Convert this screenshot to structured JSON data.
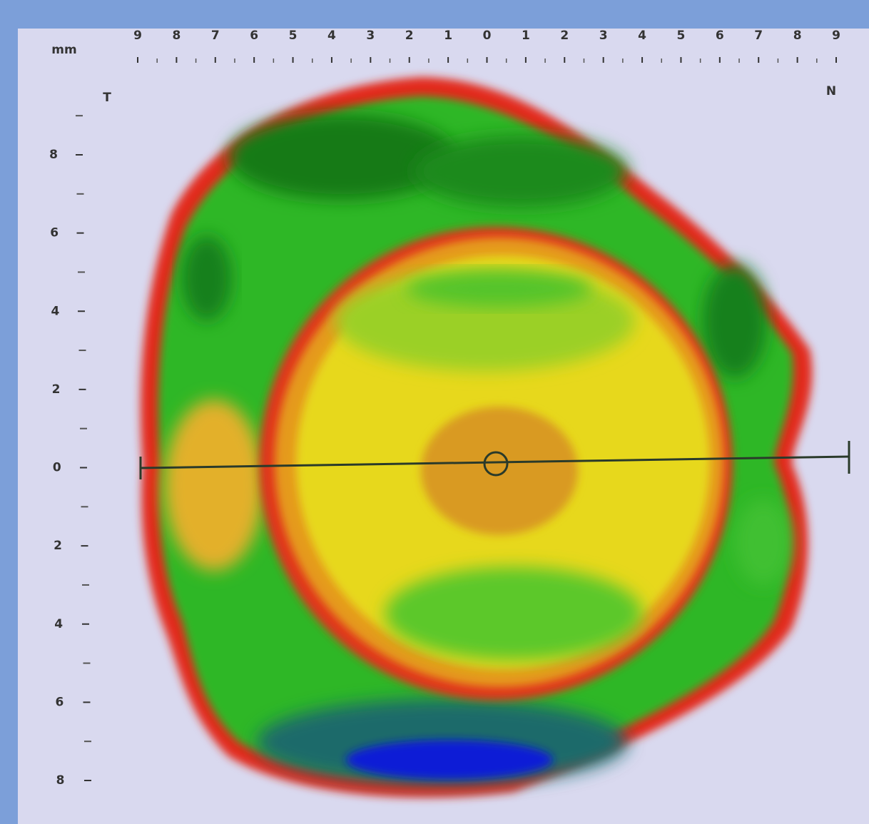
{
  "screen": {
    "unit": "mm",
    "x_axis_labels": [
      "9",
      "8",
      "7",
      "6",
      "5",
      "4",
      "3",
      "2",
      "1",
      "0",
      "1",
      "2",
      "3",
      "4",
      "5",
      "6",
      "7",
      "8",
      "9"
    ],
    "y_axis_labels": [
      "8",
      "6",
      "4",
      "2",
      "0",
      "2",
      "4",
      "6",
      "8"
    ],
    "temporal_label": "T",
    "nasal_label": "N"
  }
}
